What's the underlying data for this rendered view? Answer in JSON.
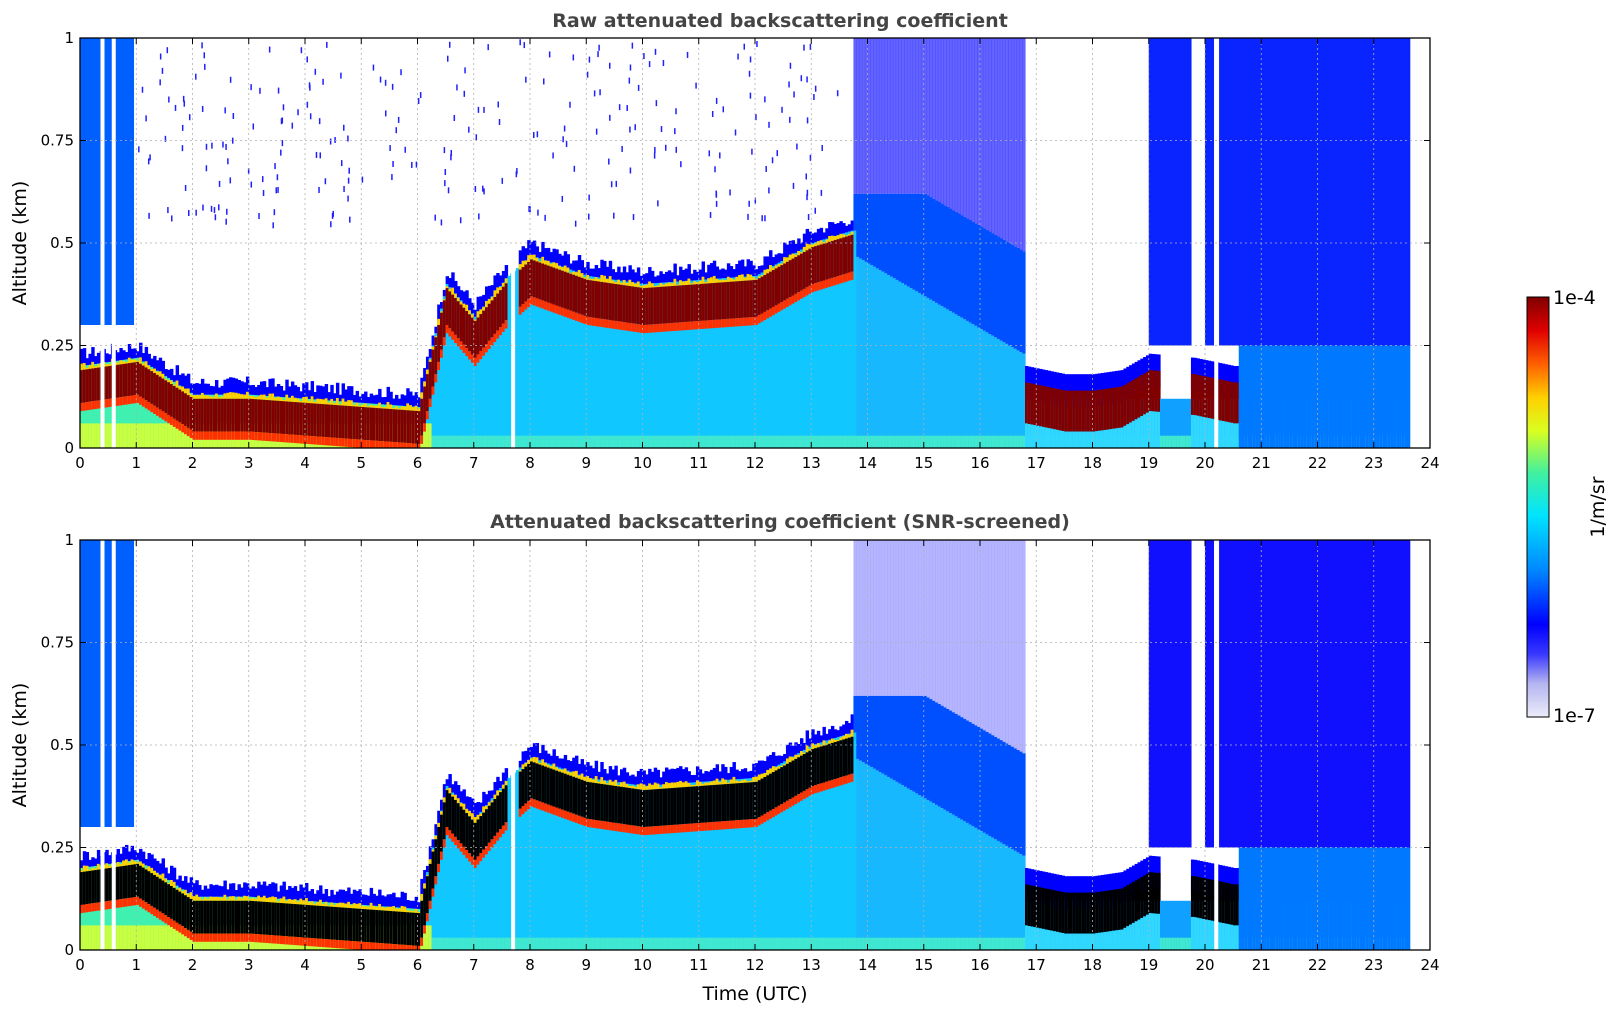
{
  "chart_data": [
    {
      "type": "heatmap",
      "title": "Raw attenuated backscattering coefficient",
      "xlabel": "",
      "ylabel": "Altitude (km)",
      "xlim": [
        0,
        24
      ],
      "ylim": [
        0,
        1
      ],
      "xticks": [
        "0",
        "1",
        "2",
        "3",
        "4",
        "5",
        "6",
        "7",
        "8",
        "9",
        "10",
        "11",
        "12",
        "13",
        "14",
        "15",
        "16",
        "17",
        "18",
        "19",
        "20",
        "21",
        "22",
        "23",
        "24"
      ],
      "yticks": [
        "0",
        "0.25",
        "0.5",
        "0.75",
        "1"
      ],
      "grid": true,
      "screened": false,
      "features": [
        {
          "name": "cloud base (high backscatter)",
          "x": [
            0.0,
            1.0,
            2.0,
            3.0,
            4.0,
            5.0,
            6.0,
            6.5,
            7.0,
            7.6,
            8.0,
            9.0,
            10.0,
            11.0,
            12.0,
            13.0,
            13.7
          ],
          "y": [
            0.2,
            0.22,
            0.13,
            0.13,
            0.12,
            0.11,
            0.1,
            0.4,
            0.32,
            0.42,
            0.47,
            0.42,
            0.4,
            0.41,
            0.42,
            0.5,
            0.53
          ]
        },
        {
          "name": "evening fog layer",
          "x": [
            16.8,
            17.5,
            18.0,
            18.5,
            19.0,
            19.8,
            20.5
          ],
          "y": [
            0.12,
            0.1,
            0.1,
            0.11,
            0.15,
            0.14,
            0.12
          ]
        }
      ],
      "data_gaps_hours": [
        0.4,
        0.6,
        7.7,
        20.2
      ]
    },
    {
      "type": "heatmap",
      "title": "Attenuated backscattering coefficient (SNR-screened)",
      "xlabel": "Time (UTC)",
      "ylabel": "Altitude (km)",
      "xlim": [
        0,
        24
      ],
      "ylim": [
        0,
        1
      ],
      "xticks": [
        "0",
        "1",
        "2",
        "3",
        "4",
        "5",
        "6",
        "7",
        "8",
        "9",
        "10",
        "11",
        "12",
        "13",
        "14",
        "15",
        "16",
        "17",
        "18",
        "19",
        "20",
        "21",
        "22",
        "23",
        "24"
      ],
      "yticks": [
        "0",
        "0.25",
        "0.5",
        "0.75",
        "1"
      ],
      "grid": true,
      "screened": true,
      "features": [
        {
          "name": "cloud base (saturated, black)",
          "x": [
            0.0,
            1.0,
            2.0,
            3.0,
            4.0,
            5.0,
            6.0,
            6.5,
            7.0,
            7.6,
            8.0,
            9.0,
            10.0,
            11.0,
            12.0,
            13.0,
            13.7
          ],
          "y": [
            0.2,
            0.22,
            0.13,
            0.13,
            0.12,
            0.11,
            0.1,
            0.4,
            0.32,
            0.42,
            0.47,
            0.42,
            0.4,
            0.41,
            0.42,
            0.5,
            0.53
          ]
        },
        {
          "name": "evening fog layer",
          "x": [
            16.8,
            17.5,
            18.0,
            18.5,
            19.0,
            19.8,
            20.5
          ],
          "y": [
            0.12,
            0.1,
            0.1,
            0.11,
            0.15,
            0.14,
            0.12
          ]
        }
      ],
      "data_gaps_hours": [
        0.4,
        0.6,
        7.7,
        20.2
      ]
    }
  ],
  "colorbar": {
    "label": "1/m/sr",
    "max_label": "1e-4",
    "min_label": "1e-7",
    "scale": "log",
    "range": [
      1e-07,
      0.0001
    ],
    "colormap": [
      "#e8e8f8",
      "#c8c8f0",
      "#0000ff",
      "#0080ff",
      "#00e0ff",
      "#60ff90",
      "#f0ff00",
      "#ff8000",
      "#ff0000",
      "#800000"
    ]
  },
  "colors": {
    "background": "#ffffff",
    "title": "#444444",
    "saturated": "#000000",
    "dark_red": "#800000"
  }
}
